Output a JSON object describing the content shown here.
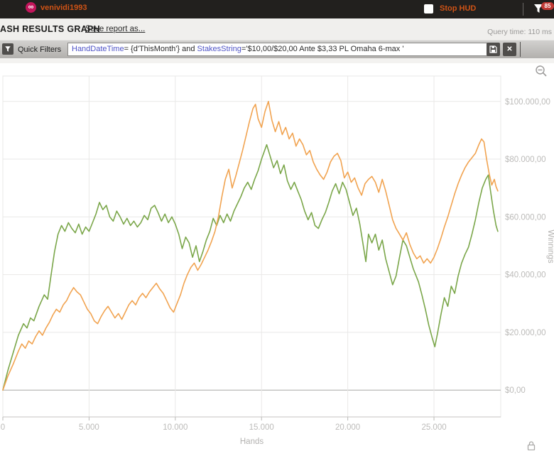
{
  "titlebar": {
    "username": "venividi1993",
    "stop_hud_label": "Stop HUD",
    "filter_badge_count": "85",
    "logo_glyph": "∞",
    "icons": [
      "app-logo-icon",
      "hud-checkbox",
      "filter-funnel-icon"
    ]
  },
  "toolbar": {
    "title": "ASH RESULTS GRAPH",
    "save_report_label": "Save report as...",
    "query_time": "Query time: 110 ms"
  },
  "filter_bar": {
    "label": "Quick Filters",
    "expression_keyword1": "HandDateTime",
    "expression_mid": "= {d'ThisMonth'} and ",
    "expression_keyword2": "StakesString",
    "expression_tail": "='$10,00/$20,00 Ante $3,33 PL Omaha 6-max '",
    "close_glyph": "✕",
    "icons": [
      "quick-filter-funnel-icon",
      "save-filter-floppy-icon",
      "clear-filter-x-icon"
    ]
  },
  "chart_icons": [
    "zoom-out-magnifier-icon",
    "lock-icon"
  ],
  "chart_data": {
    "type": "line",
    "title": "",
    "xlabel": "Hands",
    "ylabel": "Winnings",
    "grid": true,
    "legend": false,
    "xlim": [
      0,
      28870
    ],
    "ylim": [
      -9300,
      108800
    ],
    "x_ticks": [
      0,
      5000,
      10000,
      15000,
      20000,
      25000
    ],
    "x_tick_labels": [
      "0",
      "5.000",
      "10.000",
      "15.000",
      "20.000",
      "25.000"
    ],
    "y_ticks": [
      0,
      20000,
      40000,
      60000,
      80000,
      100000
    ],
    "y_tick_labels": [
      "$0,00",
      "$20.000,00",
      "$40.000,00",
      "$60.000,00",
      "$80.000,00",
      "$100.000,00"
    ],
    "colors": {
      "orange": "#f1a350",
      "green": "#7aa649",
      "gridline": "#e9e8e7",
      "zero_line": "#a9a8a6",
      "axis_text": "#bcbbb9"
    },
    "series": [
      {
        "name": "green-line",
        "color": "#7aa649",
        "points": [
          [
            0,
            0
          ],
          [
            300,
            7000
          ],
          [
            600,
            13000
          ],
          [
            900,
            19000
          ],
          [
            1200,
            23000
          ],
          [
            1400,
            21500
          ],
          [
            1600,
            25000
          ],
          [
            1800,
            24000
          ],
          [
            2100,
            29000
          ],
          [
            2400,
            33000
          ],
          [
            2600,
            31500
          ],
          [
            2800,
            40000
          ],
          [
            3000,
            48000
          ],
          [
            3200,
            54000
          ],
          [
            3400,
            57000
          ],
          [
            3600,
            55000
          ],
          [
            3800,
            58000
          ],
          [
            4000,
            56000
          ],
          [
            4200,
            54500
          ],
          [
            4400,
            57500
          ],
          [
            4600,
            54000
          ],
          [
            4800,
            56500
          ],
          [
            5000,
            55000
          ],
          [
            5200,
            58000
          ],
          [
            5400,
            61000
          ],
          [
            5600,
            65000
          ],
          [
            5800,
            62500
          ],
          [
            6000,
            64000
          ],
          [
            6200,
            60000
          ],
          [
            6400,
            58500
          ],
          [
            6600,
            62000
          ],
          [
            6800,
            60000
          ],
          [
            7000,
            57500
          ],
          [
            7200,
            59500
          ],
          [
            7400,
            57000
          ],
          [
            7600,
            58500
          ],
          [
            7800,
            56500
          ],
          [
            8000,
            58000
          ],
          [
            8200,
            60500
          ],
          [
            8400,
            59000
          ],
          [
            8600,
            63000
          ],
          [
            8800,
            64000
          ],
          [
            9000,
            61500
          ],
          [
            9200,
            58500
          ],
          [
            9400,
            61000
          ],
          [
            9600,
            58000
          ],
          [
            9800,
            60000
          ],
          [
            10000,
            57500
          ],
          [
            10200,
            54000
          ],
          [
            10400,
            49000
          ],
          [
            10600,
            53000
          ],
          [
            10800,
            51000
          ],
          [
            11000,
            46000
          ],
          [
            11200,
            50000
          ],
          [
            11400,
            44500
          ],
          [
            11600,
            48000
          ],
          [
            11800,
            52000
          ],
          [
            12000,
            55000
          ],
          [
            12200,
            59500
          ],
          [
            12400,
            57000
          ],
          [
            12600,
            60500
          ],
          [
            12800,
            58000
          ],
          [
            13000,
            61000
          ],
          [
            13200,
            58500
          ],
          [
            13400,
            62000
          ],
          [
            13600,
            64500
          ],
          [
            13800,
            67000
          ],
          [
            14000,
            70000
          ],
          [
            14200,
            72000
          ],
          [
            14400,
            69500
          ],
          [
            14600,
            73000
          ],
          [
            14800,
            76000
          ],
          [
            15000,
            80000
          ],
          [
            15300,
            85000
          ],
          [
            15500,
            81000
          ],
          [
            15700,
            77000
          ],
          [
            15900,
            79500
          ],
          [
            16100,
            75000
          ],
          [
            16300,
            78000
          ],
          [
            16500,
            72500
          ],
          [
            16700,
            69500
          ],
          [
            16900,
            72000
          ],
          [
            17100,
            69000
          ],
          [
            17300,
            66000
          ],
          [
            17500,
            62000
          ],
          [
            17700,
            59000
          ],
          [
            17900,
            61500
          ],
          [
            18100,
            57000
          ],
          [
            18300,
            56000
          ],
          [
            18500,
            59000
          ],
          [
            18700,
            61500
          ],
          [
            18900,
            65000
          ],
          [
            19100,
            69000
          ],
          [
            19300,
            71500
          ],
          [
            19500,
            68000
          ],
          [
            19700,
            72000
          ],
          [
            19900,
            69500
          ],
          [
            20100,
            65000
          ],
          [
            20300,
            60500
          ],
          [
            20500,
            63000
          ],
          [
            20700,
            57500
          ],
          [
            20900,
            50000
          ],
          [
            21050,
            44500
          ],
          [
            21200,
            54000
          ],
          [
            21400,
            51000
          ],
          [
            21600,
            54000
          ],
          [
            21800,
            48500
          ],
          [
            22000,
            52000
          ],
          [
            22200,
            45500
          ],
          [
            22400,
            41000
          ],
          [
            22600,
            36500
          ],
          [
            22800,
            39500
          ],
          [
            23000,
            46000
          ],
          [
            23200,
            52000
          ],
          [
            23400,
            50000
          ],
          [
            23600,
            46000
          ],
          [
            23800,
            42000
          ],
          [
            24100,
            37500
          ],
          [
            24300,
            33000
          ],
          [
            24500,
            28000
          ],
          [
            24700,
            22500
          ],
          [
            24900,
            18000
          ],
          [
            25050,
            15000
          ],
          [
            25200,
            19500
          ],
          [
            25400,
            26000
          ],
          [
            25600,
            32000
          ],
          [
            25800,
            29000
          ],
          [
            26000,
            36000
          ],
          [
            26200,
            33500
          ],
          [
            26400,
            39500
          ],
          [
            26600,
            44000
          ],
          [
            26800,
            47000
          ],
          [
            27000,
            49500
          ],
          [
            27200,
            54000
          ],
          [
            27400,
            59000
          ],
          [
            27600,
            65000
          ],
          [
            27800,
            70000
          ],
          [
            28000,
            73000
          ],
          [
            28150,
            74500
          ],
          [
            28300,
            68000
          ],
          [
            28450,
            62000
          ],
          [
            28600,
            57000
          ],
          [
            28700,
            55000
          ]
        ]
      },
      {
        "name": "orange-line",
        "color": "#f1a350",
        "points": [
          [
            0,
            0
          ],
          [
            300,
            5000
          ],
          [
            600,
            9000
          ],
          [
            900,
            13500
          ],
          [
            1100,
            16000
          ],
          [
            1300,
            14500
          ],
          [
            1500,
            17000
          ],
          [
            1700,
            16000
          ],
          [
            1900,
            18500
          ],
          [
            2100,
            20500
          ],
          [
            2300,
            19000
          ],
          [
            2500,
            21500
          ],
          [
            2700,
            23500
          ],
          [
            2900,
            26000
          ],
          [
            3100,
            28000
          ],
          [
            3300,
            27000
          ],
          [
            3500,
            29500
          ],
          [
            3700,
            31000
          ],
          [
            3900,
            33500
          ],
          [
            4100,
            35500
          ],
          [
            4300,
            34000
          ],
          [
            4500,
            33000
          ],
          [
            4700,
            30500
          ],
          [
            4900,
            28000
          ],
          [
            5100,
            26500
          ],
          [
            5300,
            24000
          ],
          [
            5500,
            23000
          ],
          [
            5700,
            25500
          ],
          [
            5900,
            27500
          ],
          [
            6100,
            29000
          ],
          [
            6300,
            27000
          ],
          [
            6500,
            25000
          ],
          [
            6700,
            26500
          ],
          [
            6900,
            24500
          ],
          [
            7100,
            27000
          ],
          [
            7300,
            29500
          ],
          [
            7500,
            31000
          ],
          [
            7700,
            29500
          ],
          [
            7900,
            32000
          ],
          [
            8100,
            33500
          ],
          [
            8300,
            32000
          ],
          [
            8500,
            34000
          ],
          [
            8700,
            35500
          ],
          [
            8900,
            37000
          ],
          [
            9100,
            35000
          ],
          [
            9300,
            33500
          ],
          [
            9500,
            31000
          ],
          [
            9700,
            28500
          ],
          [
            9900,
            27000
          ],
          [
            10100,
            30000
          ],
          [
            10300,
            33000
          ],
          [
            10500,
            37000
          ],
          [
            10700,
            40000
          ],
          [
            10900,
            42500
          ],
          [
            11100,
            44000
          ],
          [
            11300,
            41500
          ],
          [
            11500,
            43500
          ],
          [
            11700,
            46000
          ],
          [
            11900,
            48500
          ],
          [
            12100,
            51500
          ],
          [
            12300,
            55000
          ],
          [
            12500,
            60000
          ],
          [
            12700,
            67000
          ],
          [
            12900,
            73000
          ],
          [
            13100,
            76500
          ],
          [
            13300,
            70000
          ],
          [
            13500,
            74000
          ],
          [
            13700,
            78500
          ],
          [
            13900,
            83000
          ],
          [
            14100,
            88000
          ],
          [
            14300,
            93000
          ],
          [
            14500,
            97500
          ],
          [
            14650,
            99000
          ],
          [
            14800,
            94000
          ],
          [
            15000,
            91000
          ],
          [
            15200,
            96500
          ],
          [
            15400,
            100000
          ],
          [
            15600,
            93500
          ],
          [
            15800,
            89500
          ],
          [
            16000,
            93000
          ],
          [
            16200,
            88500
          ],
          [
            16400,
            91000
          ],
          [
            16600,
            87000
          ],
          [
            16800,
            89000
          ],
          [
            17000,
            84500
          ],
          [
            17200,
            87000
          ],
          [
            17400,
            85000
          ],
          [
            17600,
            81500
          ],
          [
            17800,
            83000
          ],
          [
            18000,
            79000
          ],
          [
            18200,
            76500
          ],
          [
            18400,
            74500
          ],
          [
            18600,
            73000
          ],
          [
            18800,
            75500
          ],
          [
            19000,
            79000
          ],
          [
            19200,
            81000
          ],
          [
            19400,
            82000
          ],
          [
            19600,
            79500
          ],
          [
            19800,
            73500
          ],
          [
            20000,
            75500
          ],
          [
            20200,
            72000
          ],
          [
            20400,
            73500
          ],
          [
            20600,
            70000
          ],
          [
            20800,
            67500
          ],
          [
            21000,
            71500
          ],
          [
            21200,
            73000
          ],
          [
            21400,
            74000
          ],
          [
            21600,
            72000
          ],
          [
            21800,
            68500
          ],
          [
            22000,
            73000
          ],
          [
            22200,
            69000
          ],
          [
            22400,
            64000
          ],
          [
            22600,
            59000
          ],
          [
            22800,
            56000
          ],
          [
            23000,
            54000
          ],
          [
            23200,
            52000
          ],
          [
            23400,
            54500
          ],
          [
            23600,
            50500
          ],
          [
            23800,
            47500
          ],
          [
            24000,
            45500
          ],
          [
            24200,
            46500
          ],
          [
            24400,
            44000
          ],
          [
            24600,
            45500
          ],
          [
            24800,
            44000
          ],
          [
            25000,
            46000
          ],
          [
            25200,
            49000
          ],
          [
            25400,
            52500
          ],
          [
            25600,
            56500
          ],
          [
            25800,
            60000
          ],
          [
            26000,
            64000
          ],
          [
            26200,
            68000
          ],
          [
            26400,
            71500
          ],
          [
            26600,
            74500
          ],
          [
            26800,
            77000
          ],
          [
            27000,
            79000
          ],
          [
            27200,
            80500
          ],
          [
            27400,
            82000
          ],
          [
            27600,
            85000
          ],
          [
            27760,
            87000
          ],
          [
            27900,
            86000
          ],
          [
            28050,
            80000
          ],
          [
            28200,
            75000
          ],
          [
            28350,
            71000
          ],
          [
            28500,
            73000
          ],
          [
            28600,
            70500
          ],
          [
            28700,
            69000
          ]
        ]
      }
    ]
  }
}
